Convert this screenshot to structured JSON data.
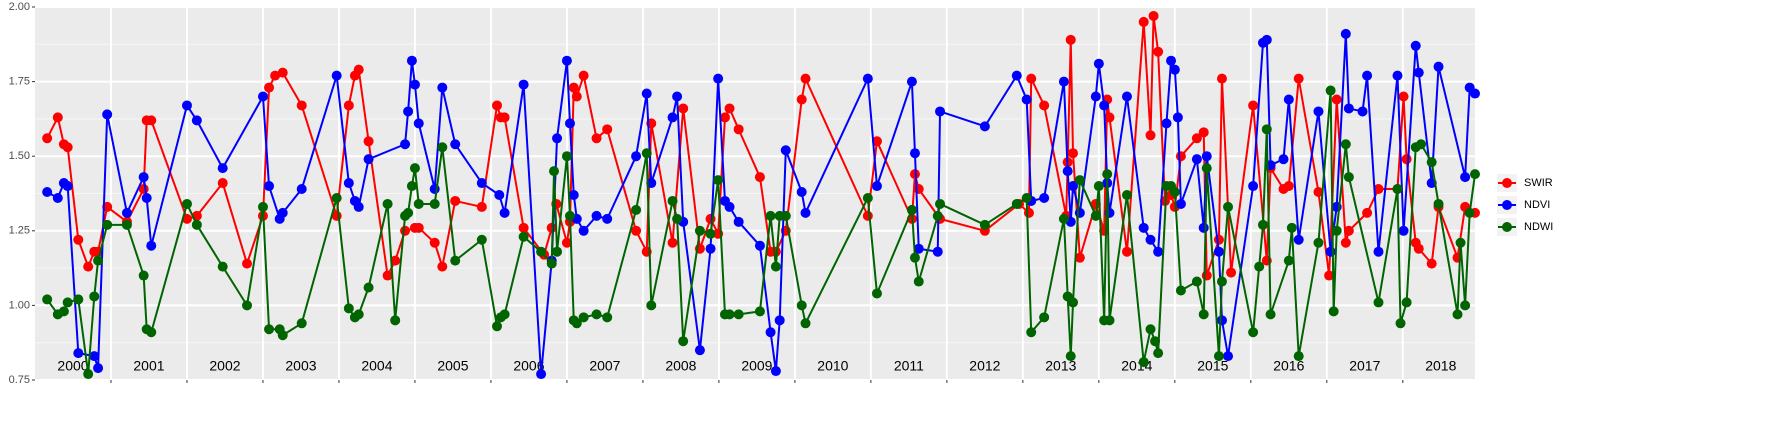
{
  "chart_data": {
    "type": "line",
    "xlim": [
      2000,
      2018.95
    ],
    "xticks": [
      2001,
      2002,
      2003,
      2004,
      2005,
      2006,
      2007,
      2008,
      2009,
      2010,
      2011,
      2012,
      2013,
      2014,
      2015,
      2016,
      2017,
      2018
    ],
    "ylim": [
      0.75,
      2.0
    ],
    "yticks": [
      {
        "value": 0.75,
        "label": "0.75"
      },
      {
        "value": 1.0,
        "label": "1.00"
      },
      {
        "value": 1.25,
        "label": "1.25"
      },
      {
        "value": 1.5,
        "label": "1.50"
      },
      {
        "value": 1.75,
        "label": "1.75"
      },
      {
        "value": 2.0,
        "label": "2.00"
      }
    ],
    "grid": true,
    "legend": "right",
    "annotations": [
      {
        "text": "2000",
        "x": 2000.5
      },
      {
        "text": "2001",
        "x": 2001.5
      },
      {
        "text": "2002",
        "x": 2002.5
      },
      {
        "text": "2003",
        "x": 2003.5
      },
      {
        "text": "2004",
        "x": 2004.5
      },
      {
        "text": "2005",
        "x": 2005.5
      },
      {
        "text": "2006",
        "x": 2006.5
      },
      {
        "text": "2007",
        "x": 2007.5
      },
      {
        "text": "2008",
        "x": 2008.5
      },
      {
        "text": "2009",
        "x": 2009.5
      },
      {
        "text": "2010",
        "x": 2010.5
      },
      {
        "text": "2011",
        "x": 2011.5
      },
      {
        "text": "2012",
        "x": 2012.5
      },
      {
        "text": "2013",
        "x": 2013.5
      },
      {
        "text": "2014",
        "x": 2014.5
      },
      {
        "text": "2015",
        "x": 2015.5
      },
      {
        "text": "2016",
        "x": 2016.5
      },
      {
        "text": "2017",
        "x": 2017.5
      },
      {
        "text": "2018",
        "x": 2018.5
      }
    ],
    "series": [
      {
        "name": "SWIR",
        "color": "#ff0000",
        "x": [
          2000.16,
          2000.3,
          2000.38,
          2000.43,
          2000.57,
          2000.7,
          2000.78,
          2000.83,
          2000.95,
          2001.21,
          2001.43,
          2001.47,
          2001.53,
          2002.0,
          2002.13,
          2002.47,
          2002.79,
          2003.0,
          2003.08,
          2003.16,
          2003.26,
          2003.51,
          2003.97,
          2004.13,
          2004.21,
          2004.26,
          2004.39,
          2004.64,
          2004.74,
          2004.87,
          2005.0,
          2005.05,
          2005.26,
          2005.36,
          2005.53,
          2005.88,
          2006.08,
          2006.13,
          2006.18,
          2006.43,
          2006.7,
          2006.8,
          2006.86,
          2007.0,
          2007.04,
          2007.09,
          2007.13,
          2007.22,
          2007.39,
          2007.53,
          2007.91,
          2008.05,
          2008.11,
          2008.39,
          2008.53,
          2008.75,
          2008.89,
          2008.99,
          2009.08,
          2009.14,
          2009.26,
          2009.54,
          2009.68,
          2009.75,
          2009.88,
          2010.09,
          2010.14,
          2010.96,
          2011.08,
          2011.54,
          2011.58,
          2011.63,
          2011.91,
          2012.5,
          2012.95,
          2013.08,
          2013.11,
          2013.28,
          2013.57,
          2013.59,
          2013.63,
          2013.66,
          2013.75,
          2013.96,
          2014.07,
          2014.11,
          2014.14,
          2014.37,
          2014.59,
          2014.68,
          2014.72,
          2014.78,
          2014.87,
          2014.95,
          2015.0,
          2015.08,
          2015.29,
          2015.38,
          2015.42,
          2015.58,
          2015.62,
          2015.74,
          2016.03,
          2016.21,
          2016.26,
          2016.43,
          2016.5,
          2016.63,
          2016.89,
          2017.03,
          2017.13,
          2017.25,
          2017.29,
          2017.53,
          2017.68,
          2017.93,
          2018.01,
          2018.05,
          2018.17,
          2018.21,
          2018.38,
          2018.47,
          2018.72,
          2018.82,
          2018.95
        ],
        "values": [
          1.56,
          1.63,
          1.54,
          1.53,
          1.22,
          1.13,
          1.18,
          1.18,
          1.33,
          1.28,
          1.39,
          1.62,
          1.62,
          1.29,
          1.3,
          1.41,
          1.14,
          1.3,
          1.73,
          1.77,
          1.78,
          1.67,
          1.3,
          1.67,
          1.77,
          1.79,
          1.55,
          1.1,
          1.15,
          1.25,
          1.26,
          1.26,
          1.21,
          1.13,
          1.35,
          1.33,
          1.67,
          1.63,
          1.63,
          1.26,
          1.17,
          1.26,
          1.34,
          1.21,
          1.28,
          1.73,
          1.7,
          1.77,
          1.56,
          1.59,
          1.25,
          1.18,
          1.61,
          1.21,
          1.66,
          1.19,
          1.29,
          1.24,
          1.63,
          1.66,
          1.59,
          1.43,
          1.18,
          1.18,
          1.25,
          1.69,
          1.76,
          1.3,
          1.55,
          1.29,
          1.44,
          1.39,
          1.29,
          1.25,
          1.34,
          1.31,
          1.76,
          1.67,
          1.3,
          1.48,
          1.89,
          1.51,
          1.16,
          1.34,
          1.25,
          1.69,
          1.63,
          1.18,
          1.95,
          1.57,
          1.97,
          1.85,
          1.35,
          1.37,
          1.33,
          1.5,
          1.56,
          1.58,
          1.1,
          1.22,
          1.76,
          1.11,
          1.67,
          1.15,
          1.46,
          1.39,
          1.4,
          1.76,
          1.38,
          1.1,
          1.69,
          1.21,
          1.25,
          1.31,
          1.39,
          1.39,
          1.7,
          1.49,
          1.21,
          1.19,
          1.14,
          1.33,
          1.16,
          1.33,
          1.31
        ]
      },
      {
        "name": "NDVI",
        "color": "#0000ff",
        "x": [
          2000.16,
          2000.3,
          2000.38,
          2000.43,
          2000.57,
          2000.78,
          2000.83,
          2000.95,
          2001.21,
          2001.43,
          2001.47,
          2001.53,
          2002.0,
          2002.13,
          2002.47,
          2003.0,
          2003.08,
          2003.22,
          2003.26,
          2003.51,
          2003.97,
          2004.13,
          2004.21,
          2004.26,
          2004.39,
          2004.87,
          2004.91,
          2004.96,
          2005.0,
          2005.05,
          2005.26,
          2005.36,
          2005.53,
          2005.88,
          2006.11,
          2006.18,
          2006.43,
          2006.66,
          2006.8,
          2006.87,
          2007.0,
          2007.04,
          2007.09,
          2007.13,
          2007.22,
          2007.39,
          2007.53,
          2007.91,
          2008.05,
          2008.11,
          2008.39,
          2008.45,
          2008.53,
          2008.75,
          2008.89,
          2008.99,
          2009.08,
          2009.14,
          2009.26,
          2009.54,
          2009.68,
          2009.75,
          2009.8,
          2009.88,
          2010.09,
          2010.14,
          2010.96,
          2011.08,
          2011.54,
          2011.58,
          2011.63,
          2011.88,
          2011.91,
          2012.5,
          2012.92,
          2013.05,
          2013.11,
          2013.28,
          2013.54,
          2013.59,
          2013.63,
          2013.66,
          2013.75,
          2013.96,
          2014.0,
          2014.07,
          2014.11,
          2014.14,
          2014.37,
          2014.59,
          2014.68,
          2014.78,
          2014.89,
          2014.95,
          2015.0,
          2015.04,
          2015.08,
          2015.29,
          2015.38,
          2015.42,
          2015.58,
          2015.62,
          2015.7,
          2016.03,
          2016.16,
          2016.21,
          2016.26,
          2016.43,
          2016.5,
          2016.63,
          2016.89,
          2017.05,
          2017.13,
          2017.25,
          2017.29,
          2017.47,
          2017.53,
          2017.68,
          2017.93,
          2018.01,
          2018.17,
          2018.21,
          2018.38,
          2018.47,
          2018.82,
          2018.88,
          2018.95
        ],
        "values": [
          1.38,
          1.36,
          1.41,
          1.4,
          0.84,
          0.83,
          0.79,
          1.64,
          1.31,
          1.43,
          1.36,
          1.2,
          1.67,
          1.62,
          1.46,
          1.7,
          1.4,
          1.29,
          1.31,
          1.39,
          1.77,
          1.41,
          1.35,
          1.33,
          1.49,
          1.54,
          1.65,
          1.82,
          1.74,
          1.61,
          1.39,
          1.73,
          1.54,
          1.41,
          1.37,
          1.31,
          1.74,
          0.77,
          1.15,
          1.56,
          1.82,
          1.61,
          1.37,
          1.29,
          1.25,
          1.3,
          1.29,
          1.5,
          1.71,
          1.41,
          1.63,
          1.7,
          1.28,
          0.85,
          1.19,
          1.76,
          1.35,
          1.33,
          1.28,
          1.2,
          0.91,
          0.78,
          0.95,
          1.52,
          1.38,
          1.31,
          1.76,
          1.4,
          1.75,
          1.51,
          1.19,
          1.18,
          1.65,
          1.6,
          1.77,
          1.69,
          1.35,
          1.36,
          1.75,
          1.45,
          1.28,
          1.4,
          1.31,
          1.7,
          1.81,
          1.67,
          1.41,
          1.31,
          1.7,
          1.26,
          1.22,
          1.18,
          1.61,
          1.82,
          1.79,
          1.63,
          1.34,
          1.49,
          1.26,
          1.5,
          1.18,
          0.95,
          0.83,
          1.4,
          1.88,
          1.89,
          1.47,
          1.49,
          1.69,
          1.22,
          1.65,
          1.18,
          1.33,
          1.91,
          1.66,
          1.65,
          1.77,
          1.18,
          1.77,
          1.25,
          1.87,
          1.78,
          1.41,
          1.8,
          1.43,
          1.73,
          1.71
        ]
      },
      {
        "name": "NDWI",
        "color": "#006400",
        "x": [
          2000.16,
          2000.3,
          2000.38,
          2000.43,
          2000.57,
          2000.7,
          2000.78,
          2000.83,
          2000.95,
          2001.21,
          2001.43,
          2001.47,
          2001.53,
          2002.0,
          2002.13,
          2002.47,
          2002.79,
          2003.0,
          2003.08,
          2003.22,
          2003.26,
          2003.51,
          2003.97,
          2004.13,
          2004.21,
          2004.26,
          2004.39,
          2004.64,
          2004.74,
          2004.87,
          2004.91,
          2004.96,
          2005.0,
          2005.05,
          2005.26,
          2005.36,
          2005.53,
          2005.88,
          2006.08,
          2006.13,
          2006.18,
          2006.43,
          2006.66,
          2006.8,
          2006.83,
          2006.87,
          2007.0,
          2007.04,
          2007.09,
          2007.13,
          2007.22,
          2007.39,
          2007.53,
          2007.91,
          2008.05,
          2008.11,
          2008.39,
          2008.45,
          2008.53,
          2008.75,
          2008.89,
          2008.99,
          2009.08,
          2009.14,
          2009.26,
          2009.54,
          2009.68,
          2009.75,
          2009.8,
          2009.88,
          2010.09,
          2010.14,
          2010.96,
          2011.08,
          2011.54,
          2011.58,
          2011.63,
          2011.88,
          2011.91,
          2012.5,
          2012.92,
          2013.05,
          2013.11,
          2013.28,
          2013.54,
          2013.59,
          2013.63,
          2013.66,
          2013.75,
          2013.96,
          2014.0,
          2014.07,
          2014.11,
          2014.14,
          2014.37,
          2014.59,
          2014.68,
          2014.74,
          2014.78,
          2014.89,
          2014.95,
          2015.0,
          2015.08,
          2015.29,
          2015.38,
          2015.42,
          2015.58,
          2015.62,
          2015.7,
          2016.03,
          2016.11,
          2016.16,
          2016.21,
          2016.26,
          2016.5,
          2016.54,
          2016.63,
          2016.89,
          2017.05,
          2017.09,
          2017.13,
          2017.25,
          2017.29,
          2017.68,
          2017.93,
          2017.97,
          2018.05,
          2018.17,
          2018.24,
          2018.38,
          2018.47,
          2018.72,
          2018.76,
          2018.82,
          2018.88,
          2018.95
        ],
        "values": [
          1.02,
          0.97,
          0.98,
          1.01,
          1.02,
          0.77,
          1.03,
          1.15,
          1.27,
          1.27,
          1.1,
          0.92,
          0.91,
          1.34,
          1.27,
          1.13,
          1.0,
          1.33,
          0.92,
          0.92,
          0.9,
          0.94,
          1.36,
          0.99,
          0.96,
          0.97,
          1.06,
          1.34,
          0.95,
          1.3,
          1.31,
          1.4,
          1.46,
          1.34,
          1.34,
          1.53,
          1.15,
          1.22,
          0.93,
          0.96,
          0.97,
          1.23,
          1.18,
          1.14,
          1.45,
          1.18,
          1.5,
          1.3,
          0.95,
          0.94,
          0.96,
          0.97,
          0.96,
          1.32,
          1.51,
          1.0,
          1.35,
          1.29,
          0.88,
          1.25,
          1.24,
          1.42,
          0.97,
          0.97,
          0.97,
          0.98,
          1.3,
          1.13,
          1.3,
          1.3,
          1.0,
          0.94,
          1.36,
          1.04,
          1.32,
          1.16,
          1.08,
          1.3,
          1.34,
          1.27,
          1.34,
          1.36,
          0.91,
          0.96,
          1.29,
          1.03,
          0.83,
          1.01,
          1.42,
          1.3,
          1.4,
          0.95,
          1.44,
          0.95,
          1.37,
          0.81,
          0.92,
          0.88,
          0.84,
          1.4,
          1.4,
          1.38,
          1.05,
          1.08,
          0.97,
          1.46,
          0.83,
          1.08,
          1.33,
          0.91,
          1.13,
          1.27,
          1.59,
          0.97,
          1.15,
          1.26,
          0.83,
          1.21,
          1.72,
          0.98,
          1.25,
          1.54,
          1.43,
          1.01,
          1.39,
          0.94,
          1.01,
          1.53,
          1.54,
          1.48,
          1.34,
          0.97,
          1.21,
          1.0,
          1.31,
          1.44
        ]
      }
    ]
  }
}
